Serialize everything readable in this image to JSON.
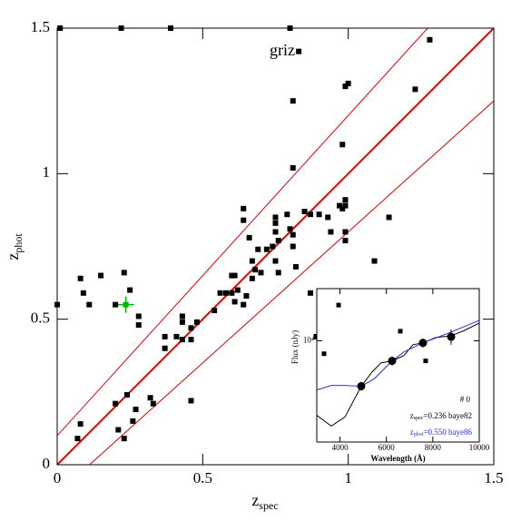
{
  "chart_data": [
    {
      "type": "scatter",
      "annotation": "griz",
      "xlabel": "z",
      "xlabel_sub": "spec",
      "ylabel": "z",
      "ylabel_sub": "phot",
      "xlim": [
        0,
        1.5
      ],
      "ylim": [
        0,
        1.5
      ],
      "xticks": [
        0,
        0.5,
        1,
        1.5
      ],
      "yticks": [
        0,
        0.5,
        1,
        1.5
      ],
      "series": [
        {
          "color": "#000000",
          "x": [
            0.01,
            0.22,
            0.39,
            0.8,
            0.83,
            1.28,
            1.23,
            1.0,
            0.99,
            0.81,
            0.98,
            0.81,
            0.08,
            0.09,
            0.11,
            0.15,
            0.23,
            0.25,
            0.2,
            0.0,
            0.28,
            0.28,
            0.07,
            0.08,
            0.2,
            0.21,
            0.24,
            0.23,
            0.26,
            0.27,
            0.32,
            0.33,
            0.37,
            0.37,
            0.41,
            0.43,
            0.43,
            0.43,
            0.46,
            0.48,
            0.46,
            0.46,
            0.54,
            0.56,
            0.58,
            0.6,
            0.6,
            0.62,
            0.61,
            0.61,
            0.64,
            0.64,
            0.64,
            0.65,
            0.66,
            0.67,
            0.67,
            0.68,
            0.69,
            0.7,
            0.72,
            0.74,
            0.75,
            0.75,
            0.75,
            0.76,
            0.75,
            0.76,
            0.79,
            0.8,
            0.81,
            0.81,
            0.82,
            0.85,
            0.87,
            0.9,
            0.93,
            0.97,
            0.99,
            0.99,
            0.99,
            0.99,
            0.94,
            0.98,
            1.14,
            1.09,
            0.87,
            0.89
          ],
          "y": [
            1.5,
            1.5,
            1.5,
            1.5,
            1.42,
            1.46,
            1.29,
            1.31,
            1.3,
            1.25,
            1.1,
            1.02,
            0.64,
            0.59,
            0.55,
            0.65,
            0.66,
            0.6,
            0.55,
            0.55,
            0.51,
            0.48,
            0.09,
            0.14,
            0.21,
            0.12,
            0.24,
            0.09,
            0.15,
            0.19,
            0.23,
            0.21,
            0.4,
            0.44,
            0.44,
            0.43,
            0.51,
            0.49,
            0.47,
            0.49,
            0.43,
            0.22,
            0.53,
            0.59,
            0.59,
            0.59,
            0.65,
            0.6,
            0.65,
            0.56,
            0.88,
            0.84,
            0.55,
            0.58,
            0.78,
            0.7,
            0.64,
            0.67,
            0.74,
            0.66,
            0.74,
            0.75,
            0.83,
            0.85,
            0.8,
            0.77,
            0.7,
            0.66,
            0.86,
            0.81,
            0.79,
            0.75,
            0.68,
            0.87,
            0.86,
            0.86,
            0.85,
            0.89,
            0.91,
            0.89,
            0.8,
            0.77,
            0.8,
            0.88,
            0.85,
            0.7,
            0.59,
            0.44
          ]
        },
        {
          "color": "#00b000",
          "x": [
            0.236
          ],
          "y": [
            0.55
          ]
        }
      ],
      "lines": [
        {
          "color": "#e00000",
          "width": 2,
          "x": [
            0,
            1.5
          ],
          "y": [
            0,
            1.5
          ]
        },
        {
          "color": "#e00000",
          "width": 1,
          "x": [
            0,
            1.2727
          ],
          "y": [
            0.1,
            1.5
          ]
        },
        {
          "color": "#e00000",
          "width": 1,
          "x": [
            0.1111,
            1.5
          ],
          "y": [
            0,
            1.25
          ]
        }
      ]
    },
    {
      "type": "line",
      "xlabel": "Wavelength (Å)",
      "ylabel": "Flux (nJy)",
      "xlim": [
        3000,
        10000
      ],
      "ylim": [
        3200,
        18000
      ],
      "log_y": true,
      "xticks": [
        4000,
        6000,
        8000,
        10000
      ],
      "yticks": [
        {
          "value": 10000,
          "label": "10⁴"
        }
      ],
      "series": [
        {
          "color": "#000000",
          "x": [
            3000,
            3626,
            4212,
            4916,
            5385,
            5776,
            6245,
            6754,
            7145,
            7575,
            8122,
            8787,
            9295,
            10000
          ],
          "values": [
            4325,
            3830,
            4240,
            6000,
            7050,
            7810,
            7970,
            8470,
            9570,
            9770,
            10380,
            10590,
            11150,
            12210
          ]
        },
        {
          "color": "#2233dd",
          "x": [
            3000,
            3626,
            4212,
            4916,
            5463,
            6245,
            6754,
            7575,
            8787,
            10000
          ],
          "values": [
            5750,
            6050,
            6050,
            6000,
            6500,
            7970,
            8830,
            9770,
            11040,
            12590
          ]
        }
      ],
      "photometry": {
        "x": [
          4916,
          6246,
          7575,
          8788
        ],
        "values": [
          6000,
          7980,
          9770,
          10470
        ],
        "errors": [
          300,
          400,
          500,
          900
        ]
      },
      "points": {
        "x": [
          3313,
          3940,
          6600,
          7690
        ],
        "values": [
          8650,
          14960,
          11150,
          7980
        ]
      },
      "id_label": "# 0",
      "zspec_label": {
        "base": "z",
        "sub": "spec",
        "text": "=0.236 baye82"
      },
      "zphot_label": {
        "base": "z",
        "sub": "phot",
        "text": "=0.550 baye86",
        "color": "#2233dd"
      }
    }
  ]
}
